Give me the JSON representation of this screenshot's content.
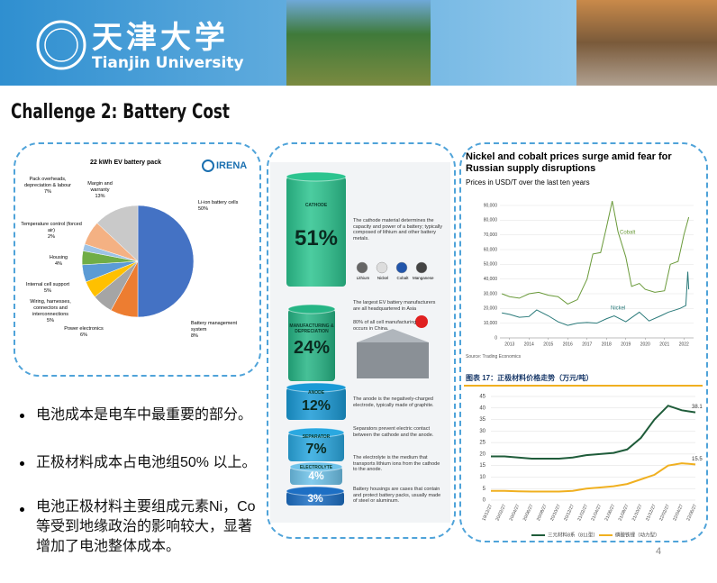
{
  "header": {
    "logo_cn": "天津大学",
    "logo_en": "Tianjin University"
  },
  "title": "Challenge 2: Battery Cost",
  "pie_chart": {
    "type": "pie",
    "title": "22 kWh EV battery pack",
    "source": "IRENA",
    "categories": [
      "Li-ion battery cells",
      "Battery management system",
      "Power electronics",
      "Wiring, harnesses, connectors and interconnections",
      "Internal cell support",
      "Housing",
      "Temperature control (forced air)",
      "Pack overheads, depreciation & labour",
      "Margin and warranty"
    ],
    "values": [
      50,
      8,
      6,
      5,
      5,
      4,
      2,
      7,
      13
    ],
    "value_labels": [
      "50%",
      "8%",
      "6%",
      "5%",
      "5%",
      "4%",
      "2%",
      "7%",
      "13%"
    ],
    "colors": [
      "#4472c4",
      "#ed7d31",
      "#a5a5a5",
      "#ffc000",
      "#5b9bd5",
      "#70ad47",
      "#9dc3e6",
      "#f4b183",
      "#c9c9c9"
    ]
  },
  "battery": {
    "segments": [
      {
        "name": "CATHODE",
        "share": "51%",
        "text": "The cathode material determines the capacity and power of a battery; typically composed of lithium and other battery metals."
      },
      {
        "name": "MANUFACTURING & DEPRECIATION",
        "share": "24%",
        "text": "The largest EV battery manufacturers are all headquartered in Asia"
      },
      {
        "name": "ANODE",
        "share": "12%",
        "text": "The anode is the negatively-charged electrode, typically made of graphite."
      },
      {
        "name": "SEPARATOR",
        "share": "7%",
        "text": "Separators prevent electric contact between the cathode and the anode."
      },
      {
        "name": "ELECTROLYTE",
        "share": "4%",
        "text": "The electrolyte is the medium that transports lithium ions from the cathode to the anode."
      },
      {
        "share": "3%",
        "text": "Battery housings are cases that contain and protect battery packs, usually made of steel or aluminum."
      }
    ],
    "metals": [
      "Lithium",
      "Nickel",
      "Cobalt",
      "Manganese"
    ],
    "china_note": "80% of all cell manufacturing occurs in China."
  },
  "price_chart": {
    "type": "line",
    "title": "Nickel and cobalt prices surge amid fear for Russian supply disruptions",
    "subtitle": "Prices in USD/T over the last ten years",
    "source": "Source: Trading Economics",
    "xlim": [
      2012.5,
      2022.5
    ],
    "xticks": [
      2013,
      2014,
      2015,
      2016,
      2017,
      2018,
      2019,
      2020,
      2021,
      2022
    ],
    "ylim": [
      0,
      90000
    ],
    "yticks": [
      0,
      {
        "value": 10000,
        "label": "10,000"
      },
      {
        "value": 20000,
        "label": "20,000"
      },
      {
        "value": 30000,
        "label": "30,000"
      },
      {
        "value": 40000,
        "label": "40,000"
      },
      {
        "value": 50000,
        "label": "50,000"
      },
      {
        "value": 60000,
        "label": "60,000"
      },
      {
        "value": 70000,
        "label": "70,000"
      },
      {
        "value": 80000,
        "label": "80,000"
      },
      {
        "value": 90000,
        "label": "90,000"
      }
    ],
    "grid": true,
    "series": [
      {
        "name": "Cobalt",
        "color": "#6a9a3a",
        "x": [
          2012.6,
          2013,
          2013.5,
          2014,
          2014.5,
          2015,
          2015.5,
          2016,
          2016.5,
          2017,
          2017.3,
          2017.7,
          2018,
          2018.3,
          2018.6,
          2019,
          2019.3,
          2019.7,
          2020,
          2020.5,
          2021,
          2021.3,
          2021.7,
          2022,
          2022.25
        ],
        "values": [
          30000,
          28000,
          27000,
          30000,
          31000,
          29000,
          28000,
          23000,
          26000,
          40000,
          57000,
          58000,
          75000,
          93000,
          72000,
          55000,
          35000,
          37000,
          33000,
          31000,
          32000,
          50000,
          52000,
          70000,
          82000
        ]
      },
      {
        "name": "Nickel",
        "color": "#2a7a7a",
        "x": [
          2012.6,
          2013,
          2013.5,
          2014,
          2014.4,
          2015,
          2015.5,
          2016,
          2016.5,
          2017,
          2017.5,
          2018,
          2018.4,
          2019,
          2019.7,
          2020.2,
          2020.8,
          2021.2,
          2021.8,
          2022.1,
          2022.2,
          2022.25
        ],
        "values": [
          17000,
          16000,
          14000,
          14500,
          19000,
          15000,
          11000,
          8500,
          10000,
          10500,
          10000,
          13000,
          15000,
          11000,
          17500,
          11500,
          15000,
          17500,
          20000,
          22000,
          45000,
          33000
        ]
      }
    ]
  },
  "cathode_chart": {
    "type": "line",
    "title": "图表 17：正极材料价格走势（万元/吨）",
    "categories": [
      "19/12/27",
      "20/02/27",
      "20/04/27",
      "20/06/27",
      "20/08/27",
      "20/10/27",
      "20/12/27",
      "21/02/27",
      "21/04/27",
      "21/06/27",
      "21/08/27",
      "21/10/27",
      "21/12/27",
      "22/02/27",
      "22/04/27",
      "22/06/27"
    ],
    "ylim": [
      0,
      45
    ],
    "yticks": [
      0,
      5,
      10,
      15,
      20,
      25,
      30,
      35,
      40,
      45
    ],
    "grid": true,
    "series": [
      {
        "name": "三元材料8系（811型）",
        "color": "#1f5c3a",
        "values": [
          19,
          19,
          18.5,
          18,
          18,
          18,
          18.5,
          19.5,
          20,
          20.5,
          22,
          27,
          35,
          41,
          39,
          38.1
        ]
      },
      {
        "name": "磷酸铁锂（动力型）",
        "color": "#f0b020",
        "values": [
          4,
          4,
          3.8,
          3.7,
          3.7,
          3.7,
          4,
          5,
          5.5,
          6,
          7,
          9,
          11,
          15,
          16,
          15.5
        ]
      }
    ]
  },
  "bullets": [
    "电池成本是电车中最重要的部分。",
    "正极材料成本占电池组50% 以上。",
    "电池正极材料主要组成元素Ni，Co等受到地缘政治的影响较大，显著增加了电池整体成本。"
  ],
  "page_number": "4"
}
